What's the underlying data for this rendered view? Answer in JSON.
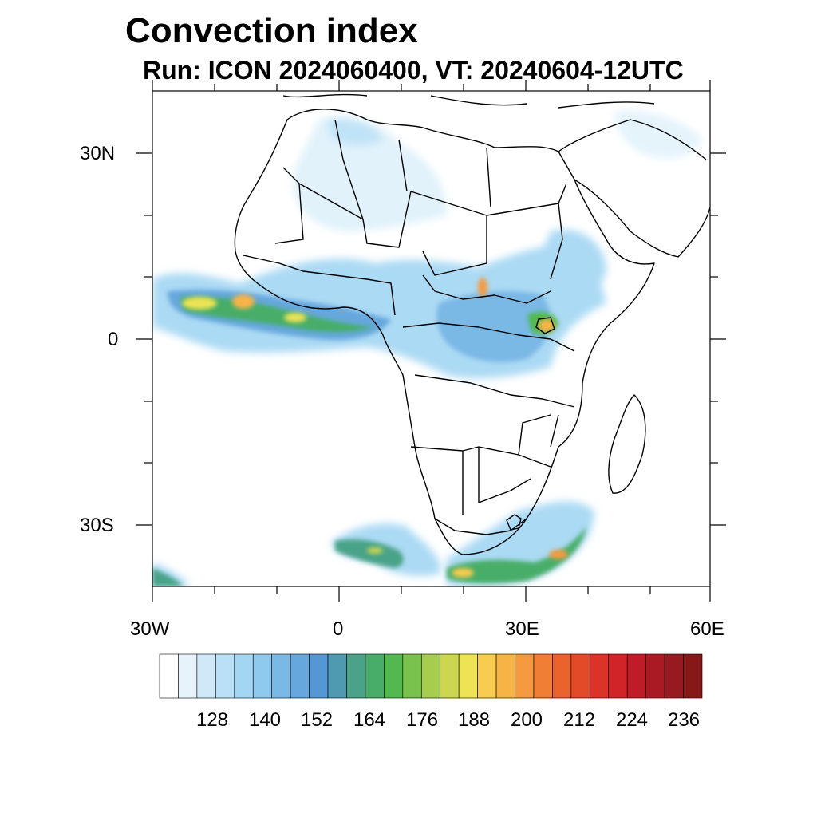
{
  "title": "Convection index",
  "subtitle": "Run: ICON 2024060400,  VT: 20240604-12UTC",
  "axes": {
    "lat_labels": [
      "30N",
      "0",
      "30S"
    ],
    "lon_labels": [
      "30W",
      "0",
      "30E",
      "60E"
    ]
  },
  "colorbar": {
    "labels": [
      "128",
      "140",
      "152",
      "164",
      "176",
      "188",
      "200",
      "212",
      "224",
      "236"
    ],
    "colors": [
      "#ffffff",
      "#e6f3fb",
      "#cfe9f8",
      "#b9e0f6",
      "#a2d6f3",
      "#8ec9ee",
      "#7ab8e6",
      "#66a7dd",
      "#5597d2",
      "#4f9ab0",
      "#4aa388",
      "#47ad68",
      "#52b84f",
      "#79c24c",
      "#a6cd4d",
      "#cbd84f",
      "#ede354",
      "#f7cc4f",
      "#f8b347",
      "#f59a3f",
      "#f07e35",
      "#ea632d",
      "#e34a28",
      "#dc3328",
      "#d02528",
      "#be1d27",
      "#aa1a24",
      "#961a20",
      "#861818"
    ]
  },
  "chart_data": {
    "type": "heatmap",
    "title": "Convection index",
    "subtitle": "Run: ICON 2024060400,  VT: 20240604-12UTC",
    "projection": "cylindrical-equidistant",
    "lon_range": [
      -30,
      60
    ],
    "lat_range": [
      -40,
      40
    ],
    "lon_ticks": [
      -30,
      0,
      30,
      60
    ],
    "lat_ticks": [
      30,
      0,
      -30
    ],
    "contour_levels": [
      122,
      124,
      126,
      128,
      130,
      132,
      134,
      136,
      138,
      140,
      144,
      148,
      152,
      156,
      160,
      164,
      168,
      172,
      176,
      180,
      184,
      188,
      192,
      196,
      200,
      204,
      208,
      212,
      216,
      220,
      224,
      228,
      232,
      236
    ],
    "features": [
      {
        "region": "ITCZ band over equatorial Atlantic / Gulf of Guinea",
        "lon": [
          -30,
          8
        ],
        "lat": [
          0,
          8
        ],
        "max_value": 200
      },
      {
        "region": "Central Africa / Congo basin",
        "lon": [
          10,
          35
        ],
        "lat": [
          -5,
          10
        ],
        "max_value": 200
      },
      {
        "region": "East African highlands / Lake Victoria",
        "lon": [
          28,
          40
        ],
        "lat": [
          -2,
          12
        ],
        "max_value": 205
      },
      {
        "region": "South Atlantic cold front",
        "lon": [
          -3,
          10
        ],
        "lat": [
          -38,
          -29
        ],
        "max_value": 190
      },
      {
        "region": "South of South Africa / Agulhas",
        "lon": [
          16,
          40
        ],
        "lat": [
          -40,
          -26
        ],
        "max_value": 205
      },
      {
        "region": "Southwest corner South Atlantic",
        "lon": [
          -30,
          -25
        ],
        "lat": [
          -40,
          -36
        ],
        "max_value": 180
      }
    ]
  }
}
